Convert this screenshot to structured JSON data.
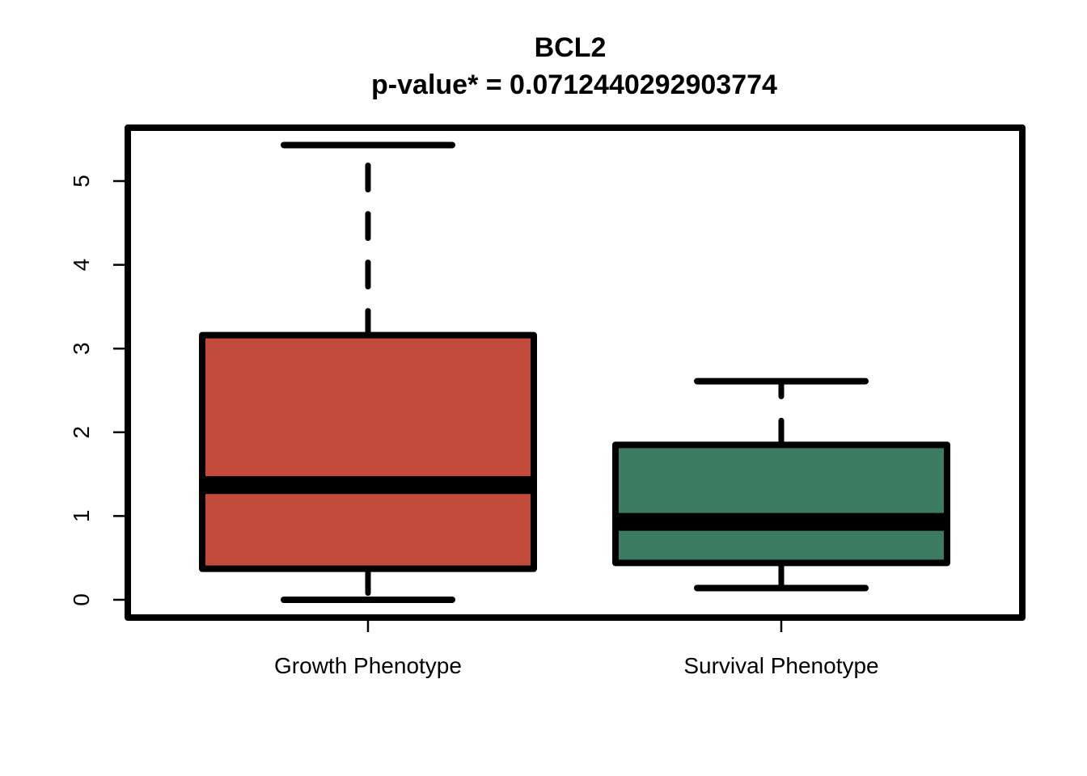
{
  "chart_data": {
    "type": "box",
    "title": "BCL2",
    "subtitle": "p-value* = 0.0712440292903774",
    "xlabel": "",
    "ylabel": "",
    "categories": [
      "Growth Phenotype",
      "Survival Phenotype"
    ],
    "boxes": [
      {
        "category": "Growth Phenotype",
        "min": 0.0,
        "q1": 0.37,
        "median": 1.37,
        "q3": 3.16,
        "max": 5.43,
        "color": "#c14a3a"
      },
      {
        "category": "Survival Phenotype",
        "min": 0.14,
        "q1": 0.44,
        "median": 0.93,
        "q3": 1.85,
        "max": 2.61,
        "color": "#3a7b62"
      }
    ],
    "yticks": [
      0,
      1,
      2,
      3,
      4,
      5
    ],
    "ylim": [
      -0.22,
      5.65
    ],
    "grid": false,
    "legend": "none"
  }
}
